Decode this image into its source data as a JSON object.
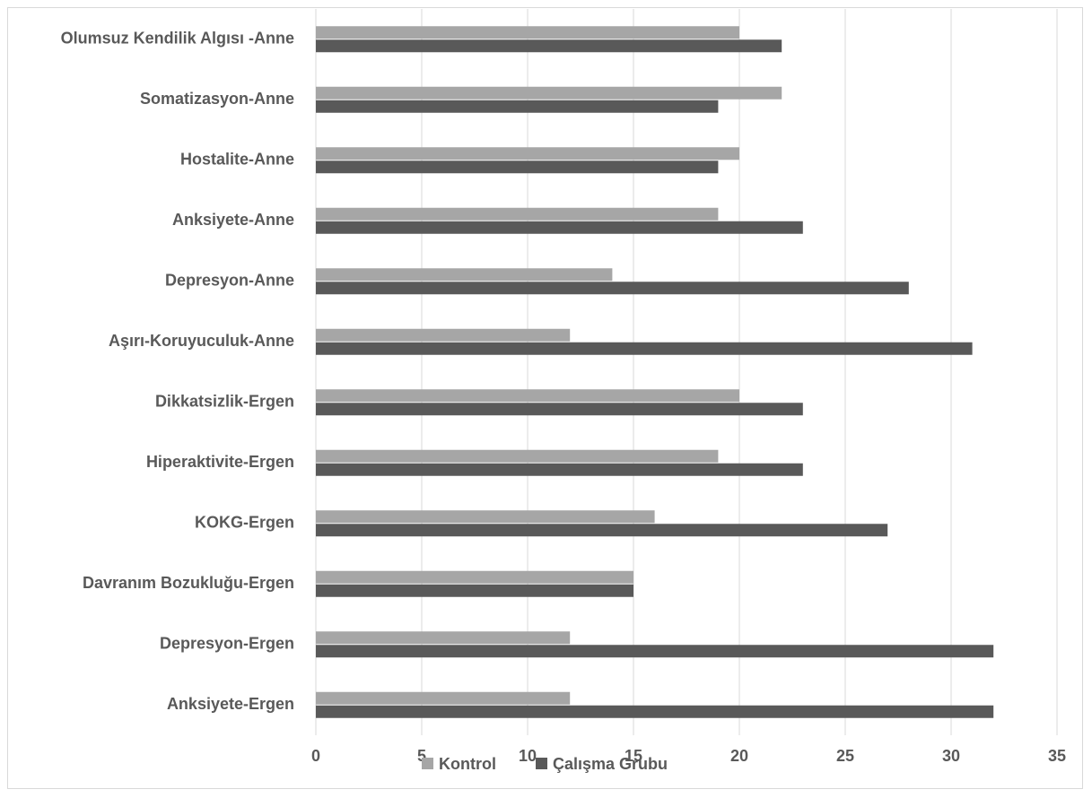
{
  "chart_data": {
    "type": "bar",
    "orientation": "horizontal",
    "categories": [
      "Olumsuz Kendilik Algısı -Anne",
      "Somatizasyon-Anne",
      "Hostalite-Anne",
      "Anksiyete-Anne",
      "Depresyon-Anne",
      "Aşırı-Koruyuculuk-Anne",
      "Dikkatsizlik-Ergen",
      "Hiperaktivite-Ergen",
      "KOKG-Ergen",
      "Davranım Bozukluğu-Ergen",
      "Depresyon-Ergen",
      "Anksiyete-Ergen"
    ],
    "series": [
      {
        "name": "Kontrol",
        "color": "#a6a6a6",
        "values": [
          20,
          22,
          20,
          19,
          14,
          12,
          20,
          19,
          16,
          15,
          12,
          12
        ]
      },
      {
        "name": "Çalışma Grubu",
        "color": "#595959",
        "values": [
          22,
          19,
          19,
          23,
          28,
          31,
          23,
          23,
          27,
          15,
          32,
          32
        ]
      }
    ],
    "xlim": [
      0,
      35
    ],
    "xticks": [
      "0",
      "5",
      "10",
      "15",
      "20",
      "25",
      "30",
      "35"
    ],
    "grid": true,
    "legend_position": "bottom"
  }
}
